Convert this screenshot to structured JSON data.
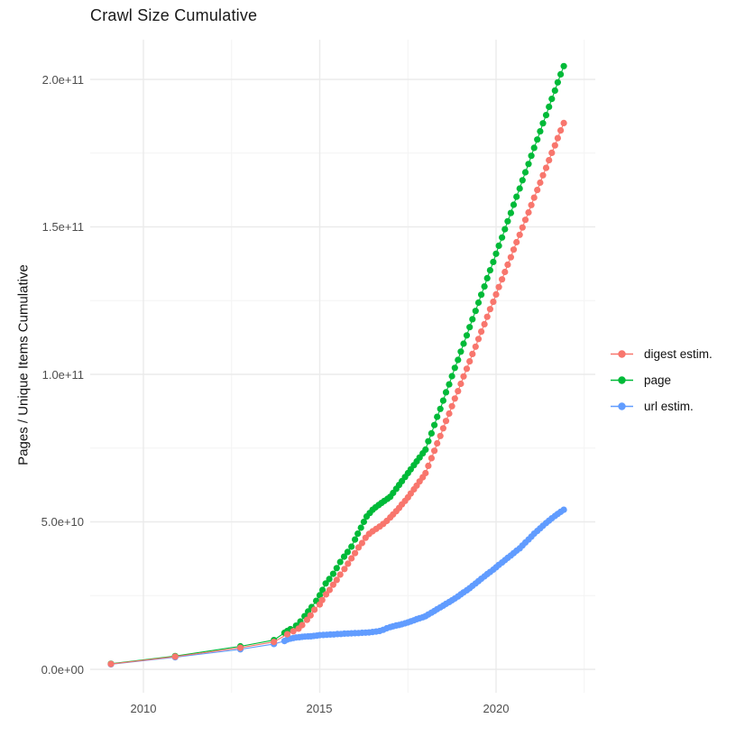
{
  "title": "Crawl Size Cumulative",
  "y_axis": {
    "label": "Pages / Unique Items Cumulative",
    "ticks": [
      {
        "value": 0,
        "label": "0.0e+00"
      },
      {
        "value": 50,
        "label": "5.0e+10"
      },
      {
        "value": 100,
        "label": "1.0e+11"
      },
      {
        "value": 150,
        "label": "1.5e+11"
      },
      {
        "value": 200,
        "label": "2.0e+11"
      }
    ],
    "minor_ticks": [
      25,
      75,
      125,
      175
    ]
  },
  "x_axis": {
    "ticks": [
      {
        "value": 2010,
        "label": "2010"
      },
      {
        "value": 2015,
        "label": "2015"
      },
      {
        "value": 2020,
        "label": "2020"
      }
    ],
    "minor_ticks": [
      2012.5,
      2017.5,
      2022.5
    ]
  },
  "legend": {
    "items": [
      {
        "label": "digest estim.",
        "color": "#F8766D"
      },
      {
        "label": "page",
        "color": "#00BA38"
      },
      {
        "label": "url estim.",
        "color": "#619CFF"
      }
    ]
  },
  "colors": {
    "digest": "#F8766D",
    "page": "#00BA38",
    "url": "#619CFF",
    "grid_major": "#EBEBEB",
    "grid_minor": "#F4F4F4",
    "tick_text": "#4d4d4d"
  },
  "chart_data": {
    "type": "line",
    "title": "Crawl Size Cumulative",
    "xlabel": "",
    "ylabel": "Pages / Unique Items Cumulative",
    "x_unit": "year (decimal)",
    "y_unit": "pages, in billions (1e9)",
    "xlim": [
      2008.6,
      2022.4
    ],
    "ylim_e9": [
      0,
      215
    ],
    "grid": true,
    "legend_position": "right",
    "series": [
      {
        "name": "page",
        "color": "#00BA38",
        "points": [
          [
            2009.08,
            1.9
          ],
          [
            2010.9,
            4.5
          ],
          [
            2012.75,
            7.8
          ],
          [
            2013.7,
            9.9
          ],
          [
            2014.0,
            12.4
          ],
          [
            2014.08,
            13.0
          ],
          [
            2014.17,
            13.6
          ],
          [
            2014.33,
            14.8
          ],
          [
            2014.45,
            16.2
          ],
          [
            2014.57,
            18.0
          ],
          [
            2014.67,
            19.6
          ],
          [
            2014.77,
            21.1
          ],
          [
            2014.9,
            23.2
          ],
          [
            2015.0,
            25.1
          ],
          [
            2015.08,
            26.9
          ],
          [
            2015.17,
            29.1
          ],
          [
            2015.27,
            30.6
          ],
          [
            2015.38,
            32.4
          ],
          [
            2015.48,
            34.3
          ],
          [
            2015.58,
            36.4
          ],
          [
            2015.69,
            38.2
          ],
          [
            2015.79,
            39.8
          ],
          [
            2015.9,
            41.6
          ],
          [
            2016.0,
            44.0
          ],
          [
            2016.08,
            46.0
          ],
          [
            2016.17,
            48.0
          ],
          [
            2016.25,
            50.0
          ],
          [
            2016.33,
            51.8
          ],
          [
            2016.42,
            53.0
          ],
          [
            2016.5,
            54.1
          ],
          [
            2016.58,
            54.9
          ],
          [
            2016.67,
            55.7
          ],
          [
            2016.75,
            56.4
          ],
          [
            2016.83,
            57.1
          ],
          [
            2016.92,
            57.8
          ],
          [
            2017.0,
            58.5
          ],
          [
            2017.08,
            59.8
          ],
          [
            2017.17,
            61.2
          ],
          [
            2017.25,
            62.5
          ],
          [
            2017.33,
            63.8
          ],
          [
            2017.42,
            65.2
          ],
          [
            2017.5,
            66.5
          ],
          [
            2017.58,
            67.8
          ],
          [
            2017.67,
            69.2
          ],
          [
            2017.75,
            70.5
          ],
          [
            2017.83,
            71.8
          ],
          [
            2017.92,
            73.2
          ],
          [
            2018.0,
            74.5
          ],
          [
            2018.08,
            77.3
          ],
          [
            2018.17,
            80.0
          ],
          [
            2018.25,
            82.8
          ],
          [
            2018.33,
            85.6
          ],
          [
            2018.42,
            88.3
          ],
          [
            2018.5,
            91.1
          ],
          [
            2018.58,
            93.9
          ],
          [
            2018.67,
            96.6
          ],
          [
            2018.75,
            99.4
          ],
          [
            2018.83,
            102.2
          ],
          [
            2018.92,
            104.9
          ],
          [
            2019.0,
            107.7
          ],
          [
            2019.08,
            110.4
          ],
          [
            2019.17,
            113.2
          ],
          [
            2019.25,
            116.0
          ],
          [
            2019.33,
            118.7
          ],
          [
            2019.42,
            121.5
          ],
          [
            2019.5,
            124.3
          ],
          [
            2019.58,
            127.0
          ],
          [
            2019.67,
            129.8
          ],
          [
            2019.75,
            132.6
          ],
          [
            2019.83,
            135.3
          ],
          [
            2019.92,
            138.1
          ],
          [
            2020.0,
            140.9
          ],
          [
            2020.08,
            143.6
          ],
          [
            2020.17,
            146.4
          ],
          [
            2020.25,
            149.2
          ],
          [
            2020.33,
            151.9
          ],
          [
            2020.42,
            154.7
          ],
          [
            2020.5,
            157.5
          ],
          [
            2020.58,
            160.2
          ],
          [
            2020.67,
            163.0
          ],
          [
            2020.75,
            165.8
          ],
          [
            2020.83,
            168.5
          ],
          [
            2020.92,
            171.3
          ],
          [
            2021.0,
            174.1
          ],
          [
            2021.08,
            176.8
          ],
          [
            2021.17,
            179.6
          ],
          [
            2021.25,
            182.4
          ],
          [
            2021.33,
            185.1
          ],
          [
            2021.42,
            187.9
          ],
          [
            2021.5,
            190.7
          ],
          [
            2021.58,
            193.4
          ],
          [
            2021.67,
            196.2
          ],
          [
            2021.75,
            199.0
          ],
          [
            2021.83,
            201.7
          ],
          [
            2021.92,
            204.5
          ]
        ]
      },
      {
        "name": "url estim.",
        "color": "#619CFF",
        "points": [
          [
            2009.08,
            1.7
          ],
          [
            2010.9,
            4.1
          ],
          [
            2012.75,
            6.8
          ],
          [
            2013.7,
            8.6
          ],
          [
            2014.0,
            9.6
          ],
          [
            2014.08,
            10.1
          ],
          [
            2014.17,
            10.4
          ],
          [
            2014.25,
            10.6
          ],
          [
            2014.33,
            10.8
          ],
          [
            2014.42,
            10.9
          ],
          [
            2014.5,
            11.0
          ],
          [
            2014.58,
            11.1
          ],
          [
            2014.67,
            11.15
          ],
          [
            2014.75,
            11.2
          ],
          [
            2014.83,
            11.3
          ],
          [
            2014.92,
            11.45
          ],
          [
            2015.0,
            11.6
          ],
          [
            2015.1,
            11.65
          ],
          [
            2015.2,
            11.7
          ],
          [
            2015.3,
            11.8
          ],
          [
            2015.4,
            11.85
          ],
          [
            2015.5,
            11.95
          ],
          [
            2015.6,
            12.0
          ],
          [
            2015.7,
            12.1
          ],
          [
            2015.8,
            12.15
          ],
          [
            2015.9,
            12.2
          ],
          [
            2016.0,
            12.25
          ],
          [
            2016.1,
            12.3
          ],
          [
            2016.2,
            12.4
          ],
          [
            2016.3,
            12.45
          ],
          [
            2016.4,
            12.5
          ],
          [
            2016.5,
            12.65
          ],
          [
            2016.6,
            12.8
          ],
          [
            2016.7,
            13.0
          ],
          [
            2016.8,
            13.4
          ],
          [
            2016.9,
            13.9
          ],
          [
            2017.0,
            14.3
          ],
          [
            2017.08,
            14.6
          ],
          [
            2017.17,
            14.85
          ],
          [
            2017.25,
            15.05
          ],
          [
            2017.33,
            15.3
          ],
          [
            2017.42,
            15.6
          ],
          [
            2017.5,
            15.9
          ],
          [
            2017.58,
            16.25
          ],
          [
            2017.67,
            16.6
          ],
          [
            2017.75,
            17.0
          ],
          [
            2017.83,
            17.3
          ],
          [
            2017.92,
            17.65
          ],
          [
            2018.0,
            18.0
          ],
          [
            2018.08,
            18.6
          ],
          [
            2018.17,
            19.2
          ],
          [
            2018.25,
            19.8
          ],
          [
            2018.33,
            20.4
          ],
          [
            2018.42,
            21.0
          ],
          [
            2018.5,
            21.6
          ],
          [
            2018.58,
            22.2
          ],
          [
            2018.67,
            22.8
          ],
          [
            2018.75,
            23.4
          ],
          [
            2018.83,
            24.0
          ],
          [
            2018.92,
            24.7
          ],
          [
            2019.0,
            25.4
          ],
          [
            2019.08,
            26.1
          ],
          [
            2019.17,
            26.8
          ],
          [
            2019.25,
            27.5
          ],
          [
            2019.33,
            28.3
          ],
          [
            2019.42,
            29.1
          ],
          [
            2019.5,
            29.9
          ],
          [
            2019.58,
            30.7
          ],
          [
            2019.67,
            31.5
          ],
          [
            2019.75,
            32.3
          ],
          [
            2019.83,
            33.0
          ],
          [
            2019.92,
            33.8
          ],
          [
            2020.0,
            34.6
          ],
          [
            2020.08,
            35.4
          ],
          [
            2020.17,
            36.2
          ],
          [
            2020.25,
            37.0
          ],
          [
            2020.33,
            37.8
          ],
          [
            2020.42,
            38.6
          ],
          [
            2020.5,
            39.4
          ],
          [
            2020.58,
            40.2
          ],
          [
            2020.67,
            41.0
          ],
          [
            2020.75,
            42.0
          ],
          [
            2020.83,
            43.0
          ],
          [
            2020.92,
            44.0
          ],
          [
            2021.0,
            45.0
          ],
          [
            2021.08,
            46.0
          ],
          [
            2021.17,
            46.9
          ],
          [
            2021.25,
            47.8
          ],
          [
            2021.33,
            48.7
          ],
          [
            2021.42,
            49.6
          ],
          [
            2021.5,
            50.4
          ],
          [
            2021.58,
            51.2
          ],
          [
            2021.67,
            52.0
          ],
          [
            2021.75,
            52.7
          ],
          [
            2021.83,
            53.4
          ],
          [
            2021.92,
            54.1
          ]
        ]
      },
      {
        "name": "digest estim.",
        "color": "#F8766D",
        "points": [
          [
            2009.08,
            1.8
          ],
          [
            2010.9,
            4.3
          ],
          [
            2012.75,
            7.3
          ],
          [
            2013.7,
            9.3
          ],
          [
            2014.08,
            11.9
          ],
          [
            2014.25,
            12.9
          ],
          [
            2014.4,
            13.8
          ],
          [
            2014.5,
            15.0
          ],
          [
            2014.64,
            16.8
          ],
          [
            2014.74,
            18.3
          ],
          [
            2014.85,
            20.2
          ],
          [
            2015.0,
            22.0
          ],
          [
            2015.07,
            23.5
          ],
          [
            2015.18,
            25.4
          ],
          [
            2015.28,
            26.9
          ],
          [
            2015.38,
            28.7
          ],
          [
            2015.48,
            30.3
          ],
          [
            2015.58,
            32.1
          ],
          [
            2015.7,
            34.0
          ],
          [
            2015.8,
            35.8
          ],
          [
            2015.9,
            37.6
          ],
          [
            2016.0,
            39.4
          ],
          [
            2016.1,
            41.3
          ],
          [
            2016.2,
            42.8
          ],
          [
            2016.3,
            44.6
          ],
          [
            2016.4,
            45.9
          ],
          [
            2016.5,
            46.8
          ],
          [
            2016.6,
            47.6
          ],
          [
            2016.7,
            48.4
          ],
          [
            2016.8,
            49.3
          ],
          [
            2016.9,
            50.3
          ],
          [
            2017.0,
            51.5
          ],
          [
            2017.08,
            52.5
          ],
          [
            2017.17,
            53.6
          ],
          [
            2017.25,
            54.7
          ],
          [
            2017.33,
            55.9
          ],
          [
            2017.42,
            57.1
          ],
          [
            2017.5,
            58.3
          ],
          [
            2017.58,
            59.6
          ],
          [
            2017.67,
            61.0
          ],
          [
            2017.75,
            62.3
          ],
          [
            2017.83,
            63.7
          ],
          [
            2017.92,
            65.1
          ],
          [
            2018.0,
            66.5
          ],
          [
            2018.08,
            69.0
          ],
          [
            2018.17,
            71.6
          ],
          [
            2018.25,
            74.1
          ],
          [
            2018.33,
            76.6
          ],
          [
            2018.42,
            79.1
          ],
          [
            2018.5,
            81.7
          ],
          [
            2018.58,
            84.2
          ],
          [
            2018.67,
            86.7
          ],
          [
            2018.75,
            89.2
          ],
          [
            2018.83,
            91.8
          ],
          [
            2018.92,
            94.3
          ],
          [
            2019.0,
            96.8
          ],
          [
            2019.08,
            99.3
          ],
          [
            2019.17,
            101.9
          ],
          [
            2019.25,
            104.4
          ],
          [
            2019.33,
            106.9
          ],
          [
            2019.42,
            109.4
          ],
          [
            2019.5,
            112.0
          ],
          [
            2019.58,
            114.5
          ],
          [
            2019.67,
            117.0
          ],
          [
            2019.75,
            119.5
          ],
          [
            2019.83,
            122.1
          ],
          [
            2019.92,
            124.6
          ],
          [
            2020.0,
            127.1
          ],
          [
            2020.08,
            129.6
          ],
          [
            2020.17,
            132.2
          ],
          [
            2020.25,
            134.7
          ],
          [
            2020.33,
            137.2
          ],
          [
            2020.42,
            139.7
          ],
          [
            2020.5,
            142.3
          ],
          [
            2020.58,
            144.8
          ],
          [
            2020.67,
            147.3
          ],
          [
            2020.75,
            149.8
          ],
          [
            2020.83,
            152.4
          ],
          [
            2020.92,
            154.9
          ],
          [
            2021.0,
            157.4
          ],
          [
            2021.08,
            159.9
          ],
          [
            2021.17,
            162.5
          ],
          [
            2021.25,
            165.0
          ],
          [
            2021.33,
            167.5
          ],
          [
            2021.42,
            170.0
          ],
          [
            2021.5,
            172.6
          ],
          [
            2021.58,
            175.1
          ],
          [
            2021.67,
            177.6
          ],
          [
            2021.75,
            180.1
          ],
          [
            2021.83,
            182.7
          ],
          [
            2021.92,
            185.2
          ]
        ]
      }
    ]
  }
}
